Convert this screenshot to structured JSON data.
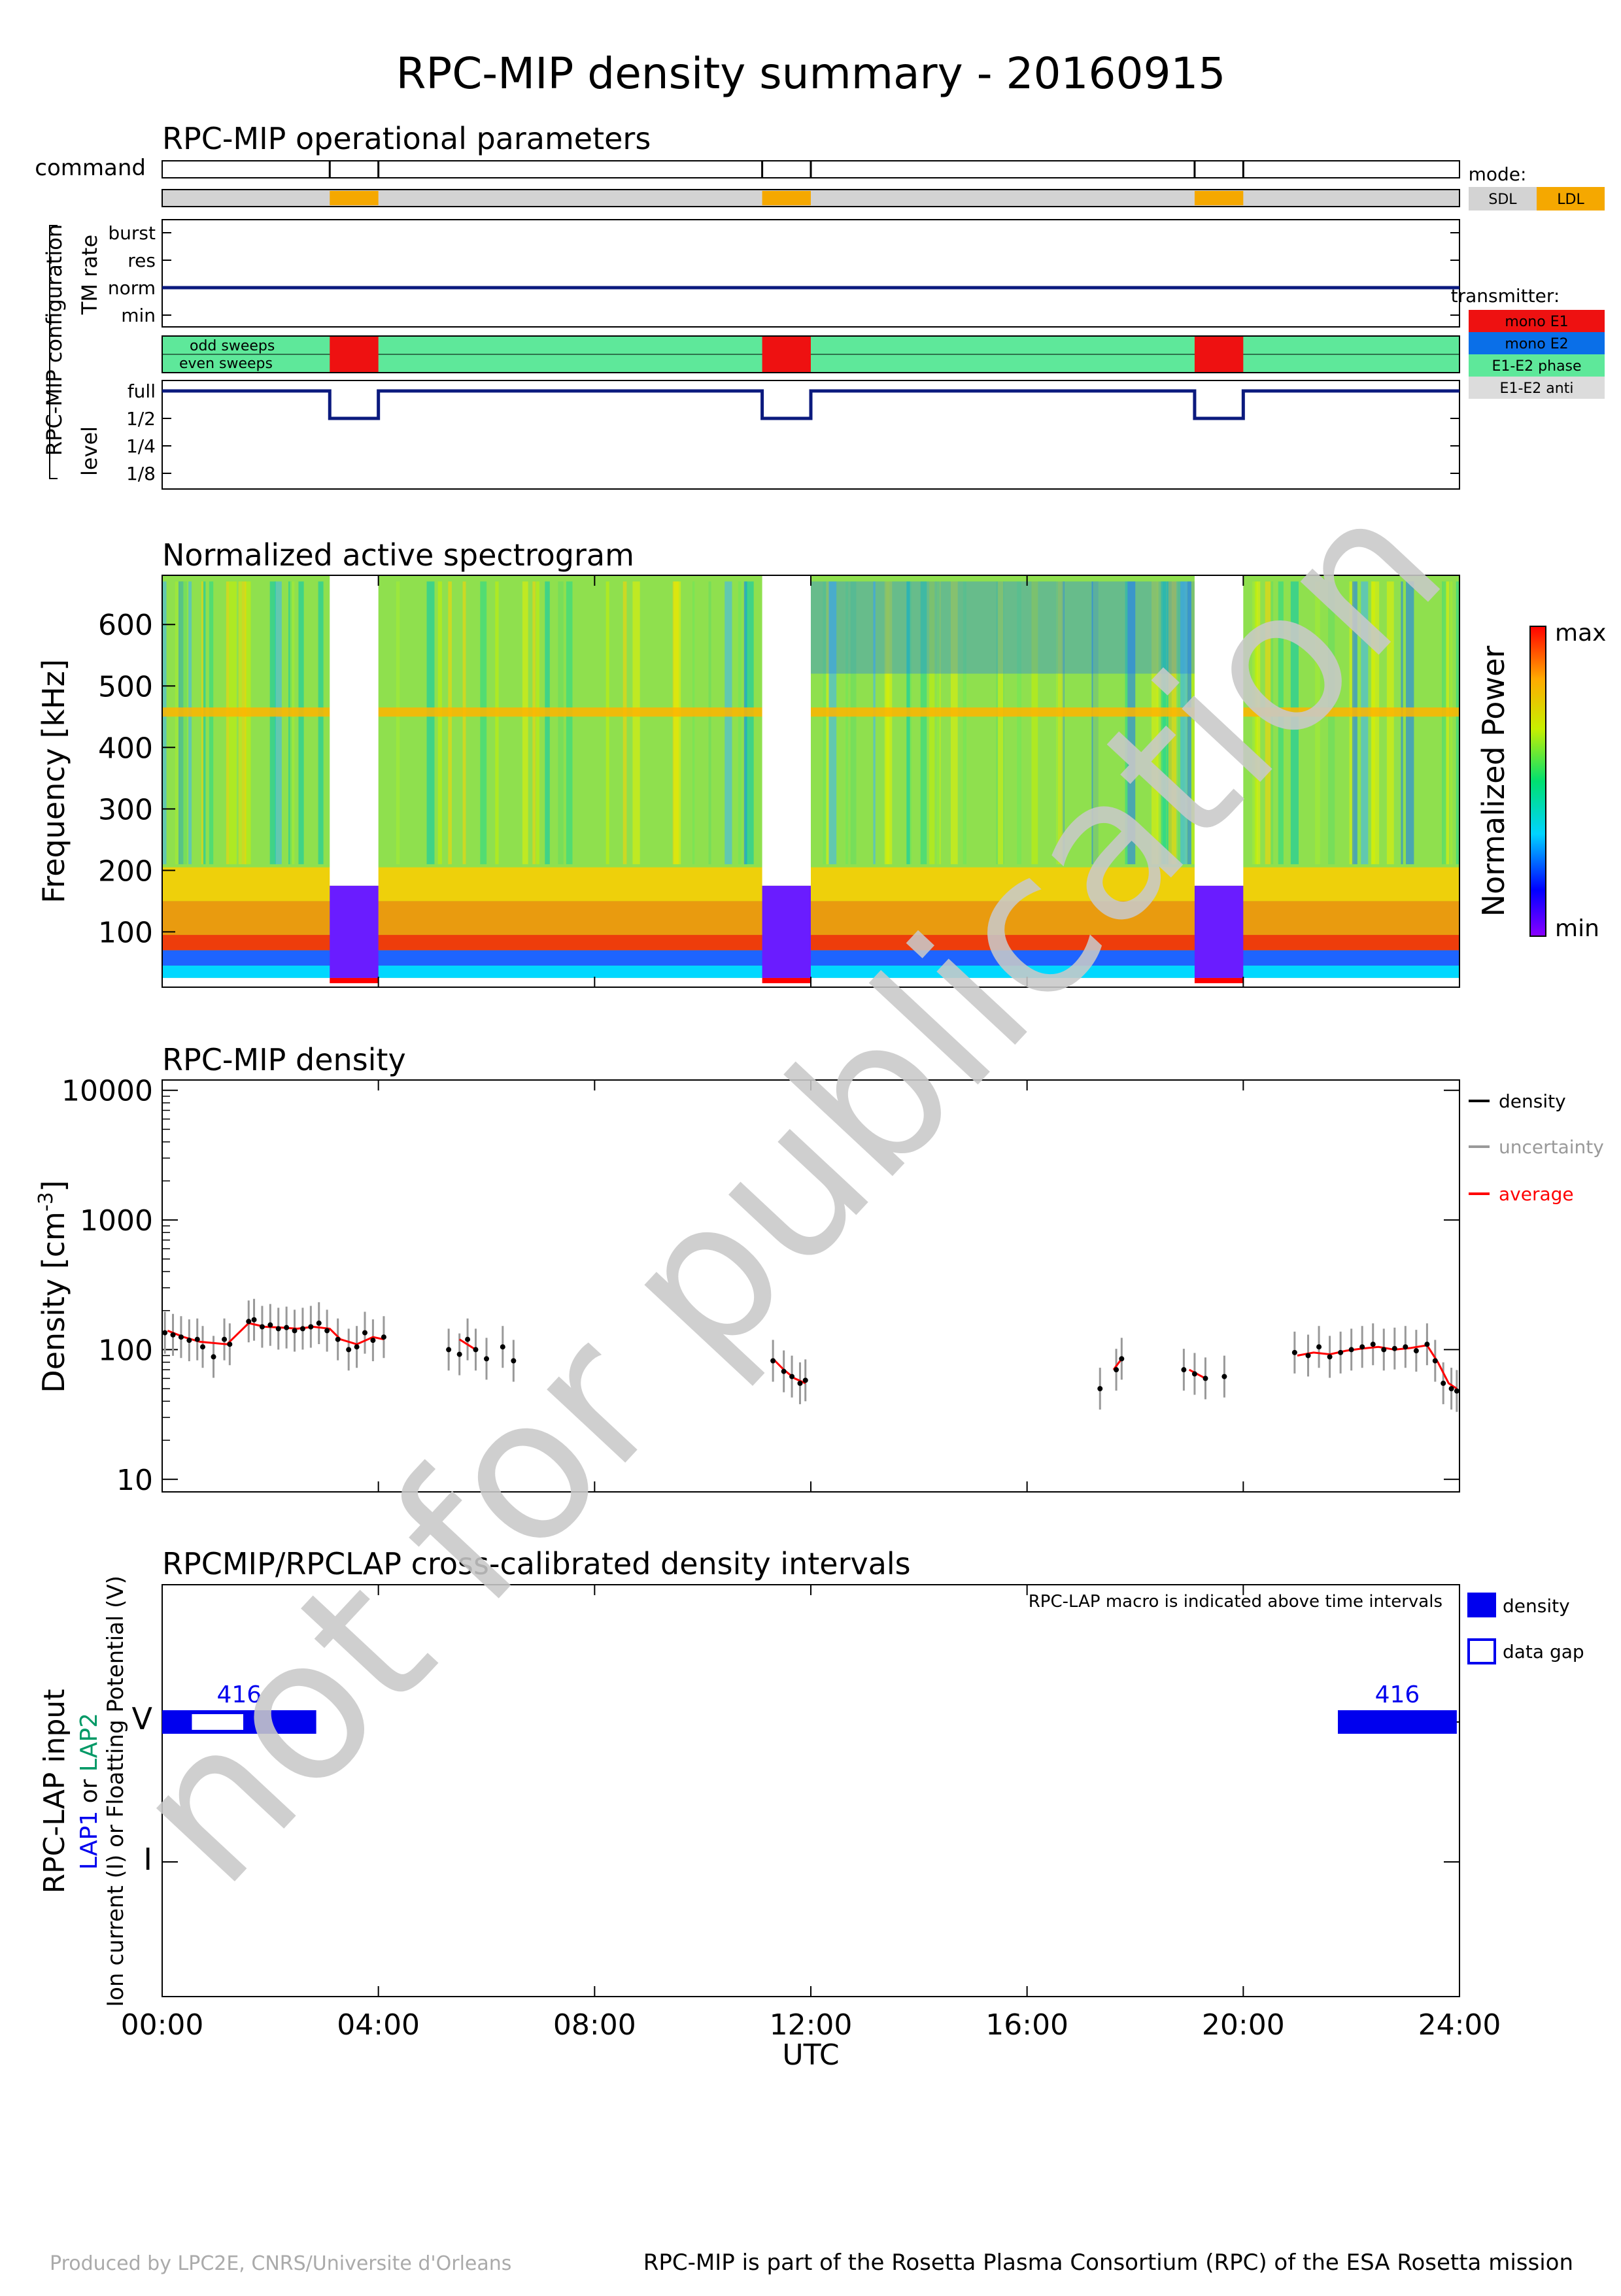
{
  "title": "RPC-MIP density summary - 20160915",
  "watermark": "not for publication",
  "footer_left": "Produced by LPC2E, CNRS/Universite d'Orleans",
  "footer_right": "RPC-MIP is part of the Rosetta Plasma Consortium (RPC) of the ESA Rosetta mission",
  "time_axis": {
    "start_hour": 0,
    "end_hour": 24,
    "ticks": [
      "00:00",
      "04:00",
      "08:00",
      "12:00",
      "16:00",
      "20:00",
      "24:00"
    ],
    "tick_hours": [
      0,
      4,
      8,
      12,
      16,
      20,
      24
    ],
    "label": "UTC"
  },
  "colors": {
    "sdl_gray": "#d3d3d3",
    "ldl_orange": "#f5a800",
    "mono_e1": "#ee1111",
    "mono_e2": "#0a6fe8",
    "e1e2_phase": "#5ee89a",
    "e1e2_anti": "#dcdcdc",
    "navy": "#0b1a7e",
    "density_blue": "#0000ee",
    "lap2_green": "#009966",
    "watermark": "#c8c8c8",
    "avg_red": "#ff0000",
    "uncert_gray": "#999999"
  },
  "op_params": {
    "title": "RPC-MIP operational parameters",
    "command_label": "command",
    "command_hours": [
      3.1,
      4.0,
      11.1,
      12.0,
      19.1,
      20.0
    ],
    "mode_label": "mode:",
    "mode_legend": [
      "SDL",
      "LDL"
    ],
    "ldl_intervals": [
      [
        3.1,
        4.0
      ],
      [
        11.1,
        12.0
      ],
      [
        19.1,
        20.0
      ]
    ],
    "config_label": "RPC-MIP configuration",
    "tm_rate_label": "TM rate",
    "tm_levels": [
      "burst",
      "res",
      "norm",
      "min"
    ],
    "tm_value": "norm",
    "transmitter_label": "transmitter:",
    "transmitter_legend": [
      "mono E1",
      "mono E2",
      "E1-E2 phase",
      "E1-E2 anti"
    ],
    "sweep_labels": [
      "odd sweeps",
      "even sweeps"
    ],
    "mono_e1_intervals": [
      [
        3.1,
        4.0
      ],
      [
        11.1,
        12.0
      ],
      [
        19.1,
        20.0
      ]
    ],
    "level_label": "level",
    "level_ticks": [
      "full",
      "1/2",
      "1/4",
      "1/8"
    ],
    "level_half_intervals": [
      [
        3.1,
        4.0
      ],
      [
        11.1,
        12.0
      ],
      [
        19.1,
        20.0
      ]
    ]
  },
  "spectrogram": {
    "title": "Normalized active spectrogram",
    "ylabel": "Frequency [kHz]",
    "yticks": [
      100,
      200,
      300,
      400,
      500,
      600
    ],
    "ylim": [
      10,
      680
    ],
    "colorbar_label": "Normalized Power",
    "colorbar_max": "max",
    "colorbar_min": "min",
    "gaps": [
      [
        3.1,
        4.0
      ],
      [
        11.1,
        12.0
      ],
      [
        19.1,
        20.0
      ]
    ]
  },
  "density": {
    "title": "RPC-MIP density",
    "ylabel_main": "Density [cm",
    "ylabel_sup": "-3",
    "ylabel_close": "]",
    "yticks": [
      "10",
      "100",
      "1000",
      "10000"
    ],
    "ylim": [
      8,
      12000
    ],
    "legend": [
      {
        "label": "density",
        "color": "#000000"
      },
      {
        "label": "uncertainty",
        "color": "#999999"
      },
      {
        "label": "average",
        "color": "#ff0000"
      }
    ]
  },
  "chart_data": {
    "type": "scatter",
    "title": "RPC-MIP density",
    "xlabel": "UTC",
    "ylabel": "Density [cm-3]",
    "xlim": [
      0,
      24
    ],
    "ylim": [
      10,
      10000
    ],
    "yscale": "log",
    "grid": false,
    "legend_position": "right",
    "series": [
      {
        "name": "density",
        "x": [
          0.05,
          0.2,
          0.35,
          0.5,
          0.65,
          0.75,
          0.95,
          1.15,
          1.25,
          1.6,
          1.7,
          1.85,
          2.0,
          2.15,
          2.3,
          2.45,
          2.6,
          2.75,
          2.9,
          3.05,
          3.25,
          3.45,
          3.6,
          3.75,
          3.9,
          4.1,
          5.3,
          5.5,
          5.65,
          5.8,
          6.0,
          6.3,
          6.5,
          11.3,
          11.5,
          11.65,
          11.8,
          11.9,
          17.35,
          17.65,
          17.75,
          18.9,
          19.1,
          19.3,
          19.65,
          20.95,
          21.2,
          21.4,
          21.6,
          21.8,
          22.0,
          22.2,
          22.4,
          22.6,
          22.8,
          23.0,
          23.2,
          23.4,
          23.55,
          23.7,
          23.85,
          23.95
        ],
        "y": [
          135,
          130,
          125,
          118,
          120,
          105,
          88,
          120,
          110,
          165,
          170,
          150,
          155,
          145,
          148,
          140,
          145,
          150,
          160,
          140,
          120,
          100,
          105,
          135,
          118,
          125,
          100,
          92,
          120,
          100,
          85,
          105,
          82,
          82,
          68,
          62,
          55,
          58,
          50,
          70,
          85,
          70,
          65,
          60,
          62,
          95,
          90,
          105,
          88,
          95,
          100,
          105,
          110,
          100,
          102,
          105,
          98,
          110,
          82,
          55,
          50,
          48
        ],
        "color": "#000000"
      },
      {
        "name": "average",
        "x": [
          0.1,
          0.4,
          0.7,
          1.2,
          1.6,
          1.9,
          2.2,
          2.5,
          2.8,
          3.1,
          3.3,
          3.6,
          3.9,
          4.1,
          5.5,
          5.8,
          11.3,
          11.5,
          11.7,
          11.9,
          17.6,
          17.75,
          19.0,
          19.3,
          21.0,
          21.3,
          21.6,
          21.9,
          22.2,
          22.5,
          22.8,
          23.1,
          23.4,
          23.6,
          23.8,
          23.95
        ],
        "y": [
          140,
          125,
          115,
          110,
          160,
          150,
          148,
          145,
          150,
          145,
          120,
          110,
          125,
          120,
          120,
          100,
          85,
          70,
          60,
          55,
          70,
          85,
          70,
          60,
          90,
          95,
          92,
          98,
          102,
          105,
          100,
          103,
          108,
          80,
          55,
          50
        ],
        "color": "#ff0000"
      }
    ]
  },
  "crosscal": {
    "title": "RPCMIP/RPCLAP cross-calibrated density intervals",
    "ylabel_1": "RPC-LAP input",
    "ylabel_lap1": "LAP1",
    "ylabel_or": " or ",
    "ylabel_lap2": "LAP2",
    "ylabel_3": "Ion current (I) or Floatting Potential (V)",
    "ytick_v": "V",
    "ytick_i": "I",
    "macro_note": "RPC-LAP macro is indicated above time intervals",
    "legend": [
      "density",
      "data gap"
    ],
    "intervals": [
      {
        "row": "V",
        "start": 0.0,
        "end": 2.85,
        "macro": "416",
        "gap": [
          0.55,
          1.5
        ]
      },
      {
        "row": "V",
        "start": 21.75,
        "end": 23.95,
        "macro": "416"
      }
    ]
  }
}
